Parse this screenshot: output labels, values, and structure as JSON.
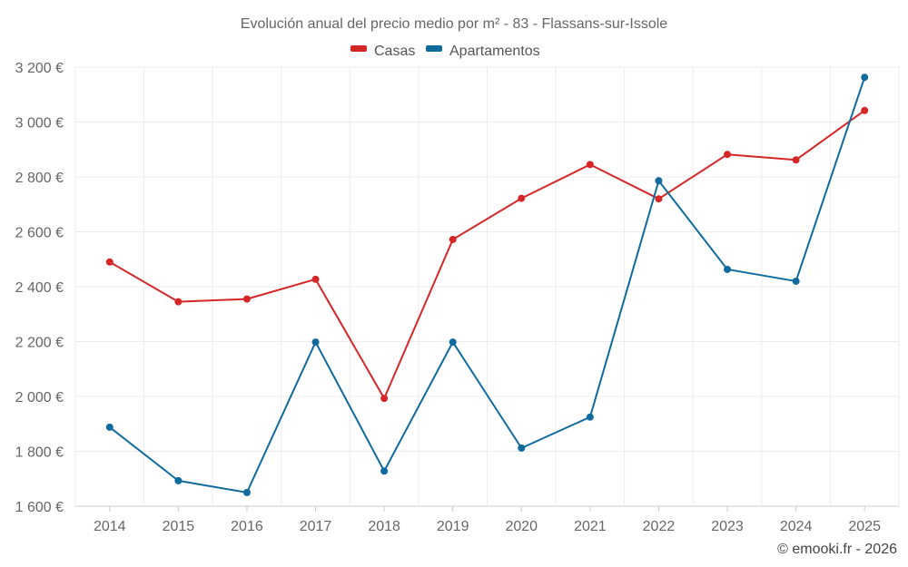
{
  "chart_data": {
    "type": "line",
    "title": "Evolución anual del precio medio por m² - 83 - Flassans-sur-Issole",
    "categories": [
      "2014",
      "2015",
      "2016",
      "2017",
      "2018",
      "2019",
      "2020",
      "2021",
      "2022",
      "2023",
      "2024",
      "2025"
    ],
    "series": [
      {
        "name": "Casas",
        "color": "#d62728",
        "values": [
          2490,
          2345,
          2355,
          2427,
          1993,
          2572,
          2722,
          2845,
          2720,
          2882,
          2862,
          3042
        ]
      },
      {
        "name": "Apartamentos",
        "color": "#0f6b9e",
        "values": [
          1888,
          1693,
          1650,
          2198,
          1728,
          2198,
          1812,
          1925,
          2786,
          2463,
          2420,
          3163
        ]
      }
    ],
    "ylim": [
      1600,
      3200
    ],
    "yticks": [
      1600,
      1800,
      2000,
      2200,
      2400,
      2600,
      2800,
      3000,
      3200
    ],
    "ytick_labels": [
      "1 600 €",
      "1 800 €",
      "2 000 €",
      "2 200 €",
      "2 400 €",
      "2 600 €",
      "2 800 €",
      "3 000 €",
      "3 200 €"
    ],
    "xlabel": "",
    "ylabel": "",
    "grid": true,
    "legend": "top-center"
  },
  "credit": "© emooki.fr - 2026"
}
